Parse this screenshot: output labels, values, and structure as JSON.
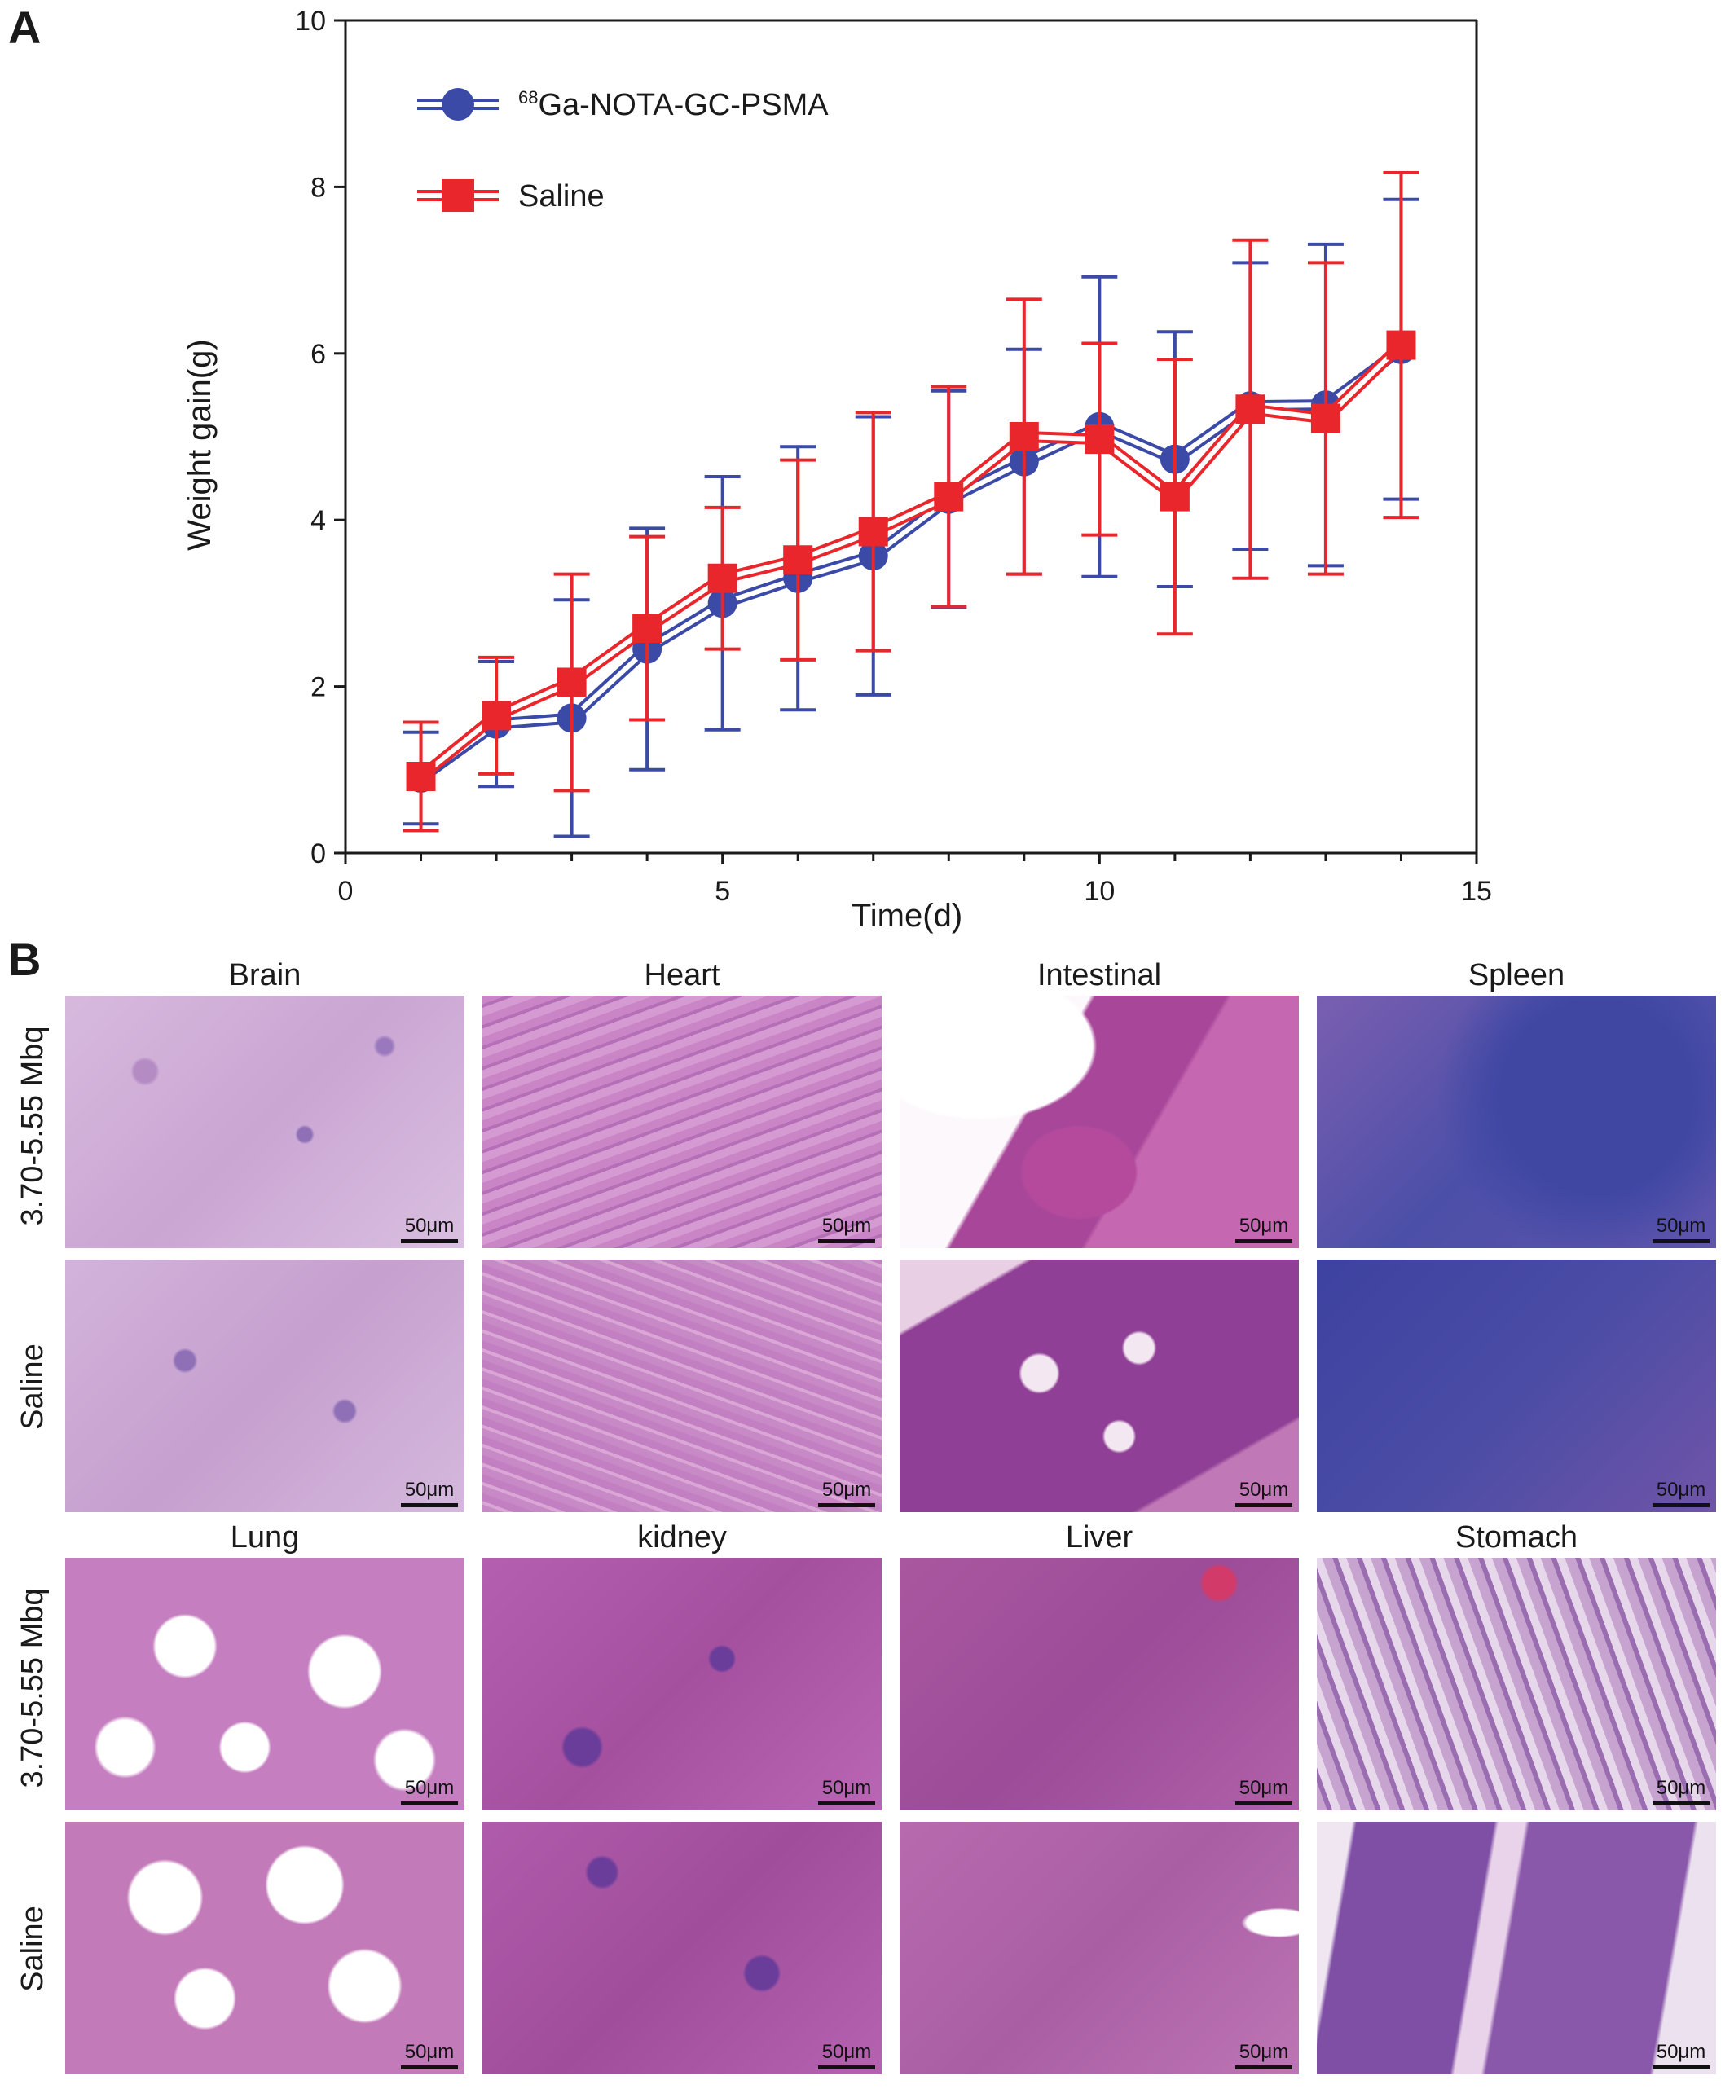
{
  "panel_a_label": "A",
  "panel_b_label": "B",
  "chart_data": {
    "type": "line",
    "xlabel": "Time(d)",
    "ylabel": "Weight gain(g)",
    "xlim": [
      0,
      15
    ],
    "ylim": [
      0,
      10
    ],
    "xticks": [
      "0",
      "5",
      "10",
      "15"
    ],
    "yticks": [
      "0",
      "2",
      "4",
      "6",
      "8",
      "10"
    ],
    "x": [
      1,
      2,
      3,
      4,
      5,
      6,
      7,
      8,
      9,
      10,
      11,
      12,
      13,
      14
    ],
    "legend": {
      "placement": "top-left",
      "entries": [
        {
          "sup": "68",
          "text": "Ga-NOTA-GC-PSMA"
        },
        {
          "sup": "",
          "text": "Saline"
        }
      ]
    },
    "series": [
      {
        "name": "68Ga-NOTA-GC-PSMA",
        "color": "#3a4aa6",
        "marker": "circle",
        "values": [
          0.9,
          1.55,
          1.62,
          2.45,
          3.0,
          3.3,
          3.57,
          4.25,
          4.7,
          5.12,
          4.73,
          5.37,
          5.38,
          6.05
        ],
        "errors": [
          0.55,
          0.75,
          1.42,
          1.45,
          1.52,
          1.58,
          1.67,
          1.3,
          1.35,
          1.8,
          1.53,
          1.72,
          1.93,
          1.8
        ]
      },
      {
        "name": "Saline",
        "color": "#e8262b",
        "marker": "square",
        "values": [
          0.92,
          1.65,
          2.05,
          2.7,
          3.3,
          3.52,
          3.86,
          4.28,
          5.0,
          4.97,
          4.28,
          5.33,
          5.22,
          6.1
        ],
        "errors": [
          0.65,
          0.7,
          1.3,
          1.1,
          0.85,
          1.2,
          1.43,
          1.32,
          1.65,
          1.15,
          1.65,
          2.03,
          1.87,
          2.07
        ]
      }
    ]
  },
  "histology": {
    "row_label_dose": "3.70-5.55 Mbq",
    "row_label_saline": "Saline",
    "scale_label": "50μm",
    "top_titles": [
      "Brain",
      "Heart",
      "Intestinal",
      "Spleen"
    ],
    "bottom_titles": [
      "Lung",
      "kidney",
      "Liver",
      "Stomach"
    ]
  }
}
